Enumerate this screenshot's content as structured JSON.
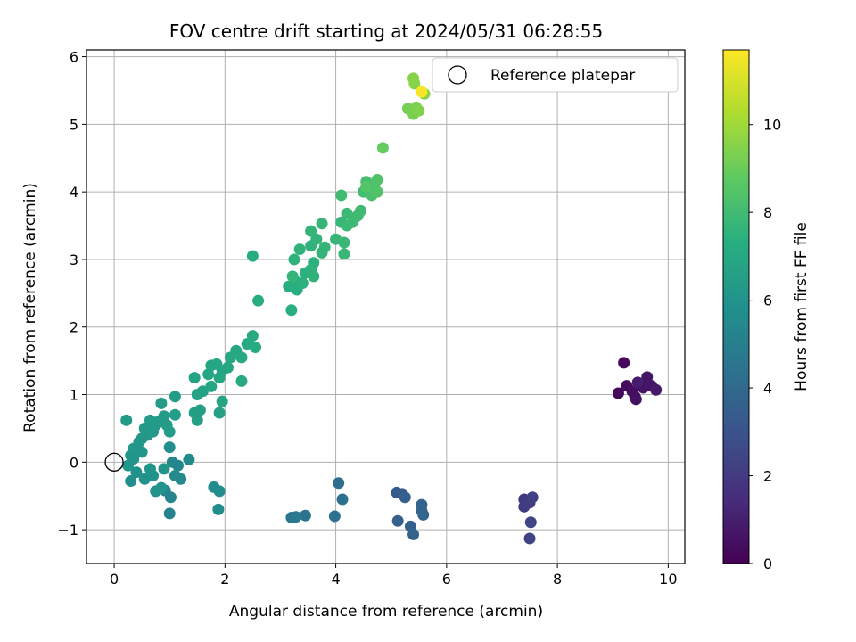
{
  "chart_data": {
    "type": "scatter",
    "title": "FOV centre drift starting at 2024/05/31 06:28:55",
    "xlabel": "Angular distance from reference (arcmin)",
    "ylabel": "Rotation from reference (arcmin)",
    "xlim": [
      -0.5,
      10.3
    ],
    "ylim": [
      -1.5,
      6.1
    ],
    "xticks": [
      0,
      2,
      4,
      6,
      8,
      10
    ],
    "yticks": [
      -1,
      0,
      1,
      2,
      3,
      4,
      5,
      6
    ],
    "xtick_labels": [
      "0",
      "2",
      "4",
      "6",
      "8",
      "10"
    ],
    "ytick_labels": [
      "−1",
      "0",
      "1",
      "2",
      "3",
      "4",
      "5",
      "6"
    ],
    "grid": true,
    "legend": {
      "position": "top-right",
      "entries": [
        "Reference platepar"
      ]
    },
    "reference_point": {
      "x": 0,
      "y": 0,
      "label": "Reference platepar"
    },
    "colorbar": {
      "label": "Hours from first FF file",
      "range": [
        0,
        11.7
      ],
      "ticks": [
        0,
        2,
        4,
        6,
        8,
        10
      ],
      "tick_labels": [
        "0",
        "2",
        "4",
        "6",
        "8",
        "10"
      ],
      "colormap": "viridis"
    },
    "points": [
      {
        "x": 9.1,
        "y": 1.02,
        "c": 0.2
      },
      {
        "x": 9.2,
        "y": 1.47,
        "c": 0.3
      },
      {
        "x": 9.25,
        "y": 1.13,
        "c": 0.35
      },
      {
        "x": 9.35,
        "y": 1.05,
        "c": 0.4
      },
      {
        "x": 9.4,
        "y": 0.97,
        "c": 0.45
      },
      {
        "x": 9.42,
        "y": 0.93,
        "c": 0.5
      },
      {
        "x": 9.5,
        "y": 1.15,
        "c": 0.55
      },
      {
        "x": 9.55,
        "y": 1.1,
        "c": 0.6
      },
      {
        "x": 9.62,
        "y": 1.26,
        "c": 0.65
      },
      {
        "x": 9.7,
        "y": 1.13,
        "c": 0.7
      },
      {
        "x": 9.78,
        "y": 1.07,
        "c": 0.8
      },
      {
        "x": 9.45,
        "y": 1.18,
        "c": 0.9
      },
      {
        "x": 7.4,
        "y": -0.55,
        "c": 1.9
      },
      {
        "x": 7.4,
        "y": -0.66,
        "c": 2.0
      },
      {
        "x": 7.5,
        "y": -0.6,
        "c": 2.1
      },
      {
        "x": 7.55,
        "y": -0.52,
        "c": 2.2
      },
      {
        "x": 7.5,
        "y": -1.13,
        "c": 2.3
      },
      {
        "x": 7.52,
        "y": -0.89,
        "c": 2.4
      },
      {
        "x": 5.1,
        "y": -0.45,
        "c": 3.3
      },
      {
        "x": 5.2,
        "y": -0.47,
        "c": 3.4
      },
      {
        "x": 5.25,
        "y": -0.52,
        "c": 3.5
      },
      {
        "x": 5.12,
        "y": -0.87,
        "c": 3.55
      },
      {
        "x": 5.35,
        "y": -0.95,
        "c": 3.6
      },
      {
        "x": 5.4,
        "y": -1.07,
        "c": 3.7
      },
      {
        "x": 5.55,
        "y": -0.63,
        "c": 3.75
      },
      {
        "x": 5.55,
        "y": -0.72,
        "c": 3.8
      },
      {
        "x": 5.58,
        "y": -0.78,
        "c": 3.85
      },
      {
        "x": 4.05,
        "y": -0.31,
        "c": 4.2
      },
      {
        "x": 4.12,
        "y": -0.55,
        "c": 4.3
      },
      {
        "x": 3.98,
        "y": -0.8,
        "c": 4.4
      },
      {
        "x": 3.45,
        "y": -0.79,
        "c": 4.5
      },
      {
        "x": 3.2,
        "y": -0.82,
        "c": 4.6
      },
      {
        "x": 3.28,
        "y": -0.81,
        "c": 4.7
      },
      {
        "x": 1.0,
        "y": -0.76,
        "c": 5.2
      },
      {
        "x": 1.02,
        "y": -0.52,
        "c": 5.25
      },
      {
        "x": 0.92,
        "y": -0.42,
        "c": 5.3
      },
      {
        "x": 1.05,
        "y": 0.0,
        "c": 5.35
      },
      {
        "x": 1.15,
        "y": -0.05,
        "c": 5.4
      },
      {
        "x": 1.2,
        "y": -0.25,
        "c": 5.45
      },
      {
        "x": 1.1,
        "y": -0.2,
        "c": 5.5
      },
      {
        "x": 1.35,
        "y": 0.04,
        "c": 5.55
      },
      {
        "x": 1.8,
        "y": -0.37,
        "c": 5.6
      },
      {
        "x": 1.9,
        "y": -0.43,
        "c": 5.65
      },
      {
        "x": 1.88,
        "y": -0.7,
        "c": 5.7
      },
      {
        "x": 1.0,
        "y": 0.22,
        "c": 5.75
      },
      {
        "x": 0.3,
        "y": -0.28,
        "c": 5.8
      },
      {
        "x": 0.4,
        "y": -0.15,
        "c": 5.85
      },
      {
        "x": 0.55,
        "y": -0.25,
        "c": 5.9
      },
      {
        "x": 0.7,
        "y": -0.2,
        "c": 5.95
      },
      {
        "x": 0.75,
        "y": -0.43,
        "c": 6.0
      },
      {
        "x": 0.85,
        "y": -0.38,
        "c": 6.0
      },
      {
        "x": 0.65,
        "y": -0.1,
        "c": 6.05
      },
      {
        "x": 0.9,
        "y": -0.1,
        "c": 6.05
      },
      {
        "x": 0.25,
        "y": -0.05,
        "c": 6.1
      },
      {
        "x": 0.3,
        "y": 0.1,
        "c": 6.1
      },
      {
        "x": 0.35,
        "y": 0.2,
        "c": 6.15
      },
      {
        "x": 0.45,
        "y": 0.3,
        "c": 6.15
      },
      {
        "x": 0.5,
        "y": 0.35,
        "c": 6.2
      },
      {
        "x": 0.6,
        "y": 0.4,
        "c": 6.2
      },
      {
        "x": 0.7,
        "y": 0.45,
        "c": 6.25
      },
      {
        "x": 0.75,
        "y": 0.55,
        "c": 6.25
      },
      {
        "x": 0.8,
        "y": 0.6,
        "c": 6.3
      },
      {
        "x": 0.55,
        "y": 0.5,
        "c": 6.3
      },
      {
        "x": 0.65,
        "y": 0.62,
        "c": 6.35
      },
      {
        "x": 0.9,
        "y": 0.68,
        "c": 6.35
      },
      {
        "x": 0.95,
        "y": 0.55,
        "c": 6.4
      },
      {
        "x": 1.0,
        "y": 0.45,
        "c": 6.4
      },
      {
        "x": 0.85,
        "y": 0.87,
        "c": 6.45
      },
      {
        "x": 1.1,
        "y": 0.97,
        "c": 6.45
      },
      {
        "x": 1.1,
        "y": 0.7,
        "c": 6.5
      },
      {
        "x": 1.45,
        "y": 0.73,
        "c": 6.5
      },
      {
        "x": 1.55,
        "y": 0.77,
        "c": 6.55
      },
      {
        "x": 1.5,
        "y": 0.62,
        "c": 6.55
      },
      {
        "x": 0.22,
        "y": 0.62,
        "c": 6.3
      },
      {
        "x": 1.9,
        "y": 0.73,
        "c": 6.6
      },
      {
        "x": 0.5,
        "y": 0.15,
        "c": 6.1
      },
      {
        "x": 0.35,
        "y": 0.05,
        "c": 6.05
      },
      {
        "x": 1.5,
        "y": 1.0,
        "c": 6.7
      },
      {
        "x": 1.6,
        "y": 1.05,
        "c": 6.7
      },
      {
        "x": 1.45,
        "y": 1.25,
        "c": 6.75
      },
      {
        "x": 1.75,
        "y": 1.12,
        "c": 6.8
      },
      {
        "x": 1.95,
        "y": 0.9,
        "c": 6.8
      },
      {
        "x": 1.7,
        "y": 1.3,
        "c": 6.85
      },
      {
        "x": 1.75,
        "y": 1.43,
        "c": 6.85
      },
      {
        "x": 1.85,
        "y": 1.45,
        "c": 6.9
      },
      {
        "x": 1.95,
        "y": 1.35,
        "c": 6.9
      },
      {
        "x": 1.9,
        "y": 1.25,
        "c": 6.95
      },
      {
        "x": 2.05,
        "y": 1.4,
        "c": 6.95
      },
      {
        "x": 2.1,
        "y": 1.55,
        "c": 7.0
      },
      {
        "x": 2.2,
        "y": 1.65,
        "c": 7.0
      },
      {
        "x": 2.3,
        "y": 1.55,
        "c": 7.05
      },
      {
        "x": 2.3,
        "y": 1.2,
        "c": 7.05
      },
      {
        "x": 2.4,
        "y": 1.75,
        "c": 7.1
      },
      {
        "x": 2.5,
        "y": 1.87,
        "c": 7.1
      },
      {
        "x": 2.55,
        "y": 1.7,
        "c": 7.15
      },
      {
        "x": 2.6,
        "y": 2.39,
        "c": 7.15
      },
      {
        "x": 2.5,
        "y": 3.05,
        "c": 7.2
      },
      {
        "x": 3.2,
        "y": 2.25,
        "c": 7.3
      },
      {
        "x": 3.15,
        "y": 2.6,
        "c": 7.3
      },
      {
        "x": 3.25,
        "y": 2.7,
        "c": 7.35
      },
      {
        "x": 3.3,
        "y": 2.55,
        "c": 7.35
      },
      {
        "x": 3.4,
        "y": 2.65,
        "c": 7.4
      },
      {
        "x": 3.45,
        "y": 2.8,
        "c": 7.4
      },
      {
        "x": 3.55,
        "y": 2.85,
        "c": 7.45
      },
      {
        "x": 3.6,
        "y": 2.95,
        "c": 7.45
      },
      {
        "x": 3.6,
        "y": 2.75,
        "c": 7.5
      },
      {
        "x": 3.25,
        "y": 3.0,
        "c": 7.5
      },
      {
        "x": 3.35,
        "y": 3.15,
        "c": 7.55
      },
      {
        "x": 3.55,
        "y": 3.2,
        "c": 7.55
      },
      {
        "x": 3.65,
        "y": 3.3,
        "c": 7.6
      },
      {
        "x": 3.75,
        "y": 3.1,
        "c": 7.6
      },
      {
        "x": 3.8,
        "y": 3.18,
        "c": 7.65
      },
      {
        "x": 3.55,
        "y": 3.42,
        "c": 7.65
      },
      {
        "x": 3.75,
        "y": 3.53,
        "c": 7.7
      },
      {
        "x": 3.22,
        "y": 2.75,
        "c": 7.7
      },
      {
        "x": 4.0,
        "y": 3.3,
        "c": 7.75
      },
      {
        "x": 4.1,
        "y": 3.55,
        "c": 7.75
      },
      {
        "x": 4.15,
        "y": 3.25,
        "c": 7.8
      },
      {
        "x": 4.15,
        "y": 3.08,
        "c": 7.8
      },
      {
        "x": 4.2,
        "y": 3.5,
        "c": 7.85
      },
      {
        "x": 4.2,
        "y": 3.68,
        "c": 7.85
      },
      {
        "x": 4.3,
        "y": 3.55,
        "c": 7.9
      },
      {
        "x": 4.35,
        "y": 3.62,
        "c": 7.9
      },
      {
        "x": 4.4,
        "y": 3.65,
        "c": 7.95
      },
      {
        "x": 4.45,
        "y": 3.72,
        "c": 7.95
      },
      {
        "x": 4.1,
        "y": 3.95,
        "c": 8.0
      },
      {
        "x": 4.5,
        "y": 4.0,
        "c": 8.1
      },
      {
        "x": 4.55,
        "y": 4.15,
        "c": 8.15
      },
      {
        "x": 4.6,
        "y": 4.05,
        "c": 8.2
      },
      {
        "x": 4.65,
        "y": 3.95,
        "c": 8.25
      },
      {
        "x": 4.7,
        "y": 4.05,
        "c": 8.3
      },
      {
        "x": 4.7,
        "y": 4.12,
        "c": 8.35
      },
      {
        "x": 4.75,
        "y": 4.18,
        "c": 8.4
      },
      {
        "x": 4.75,
        "y": 4.0,
        "c": 8.45
      },
      {
        "x": 4.55,
        "y": 4.08,
        "c": 8.5
      },
      {
        "x": 4.85,
        "y": 4.65,
        "c": 8.9
      },
      {
        "x": 5.3,
        "y": 5.23,
        "c": 9.2
      },
      {
        "x": 5.4,
        "y": 5.15,
        "c": 9.3
      },
      {
        "x": 5.45,
        "y": 5.25,
        "c": 9.35
      },
      {
        "x": 5.5,
        "y": 5.2,
        "c": 9.4
      },
      {
        "x": 5.4,
        "y": 5.68,
        "c": 9.5
      },
      {
        "x": 5.42,
        "y": 5.6,
        "c": 9.55
      },
      {
        "x": 5.6,
        "y": 5.45,
        "c": 9.6
      },
      {
        "x": 5.55,
        "y": 5.48,
        "c": 11.6
      }
    ]
  }
}
